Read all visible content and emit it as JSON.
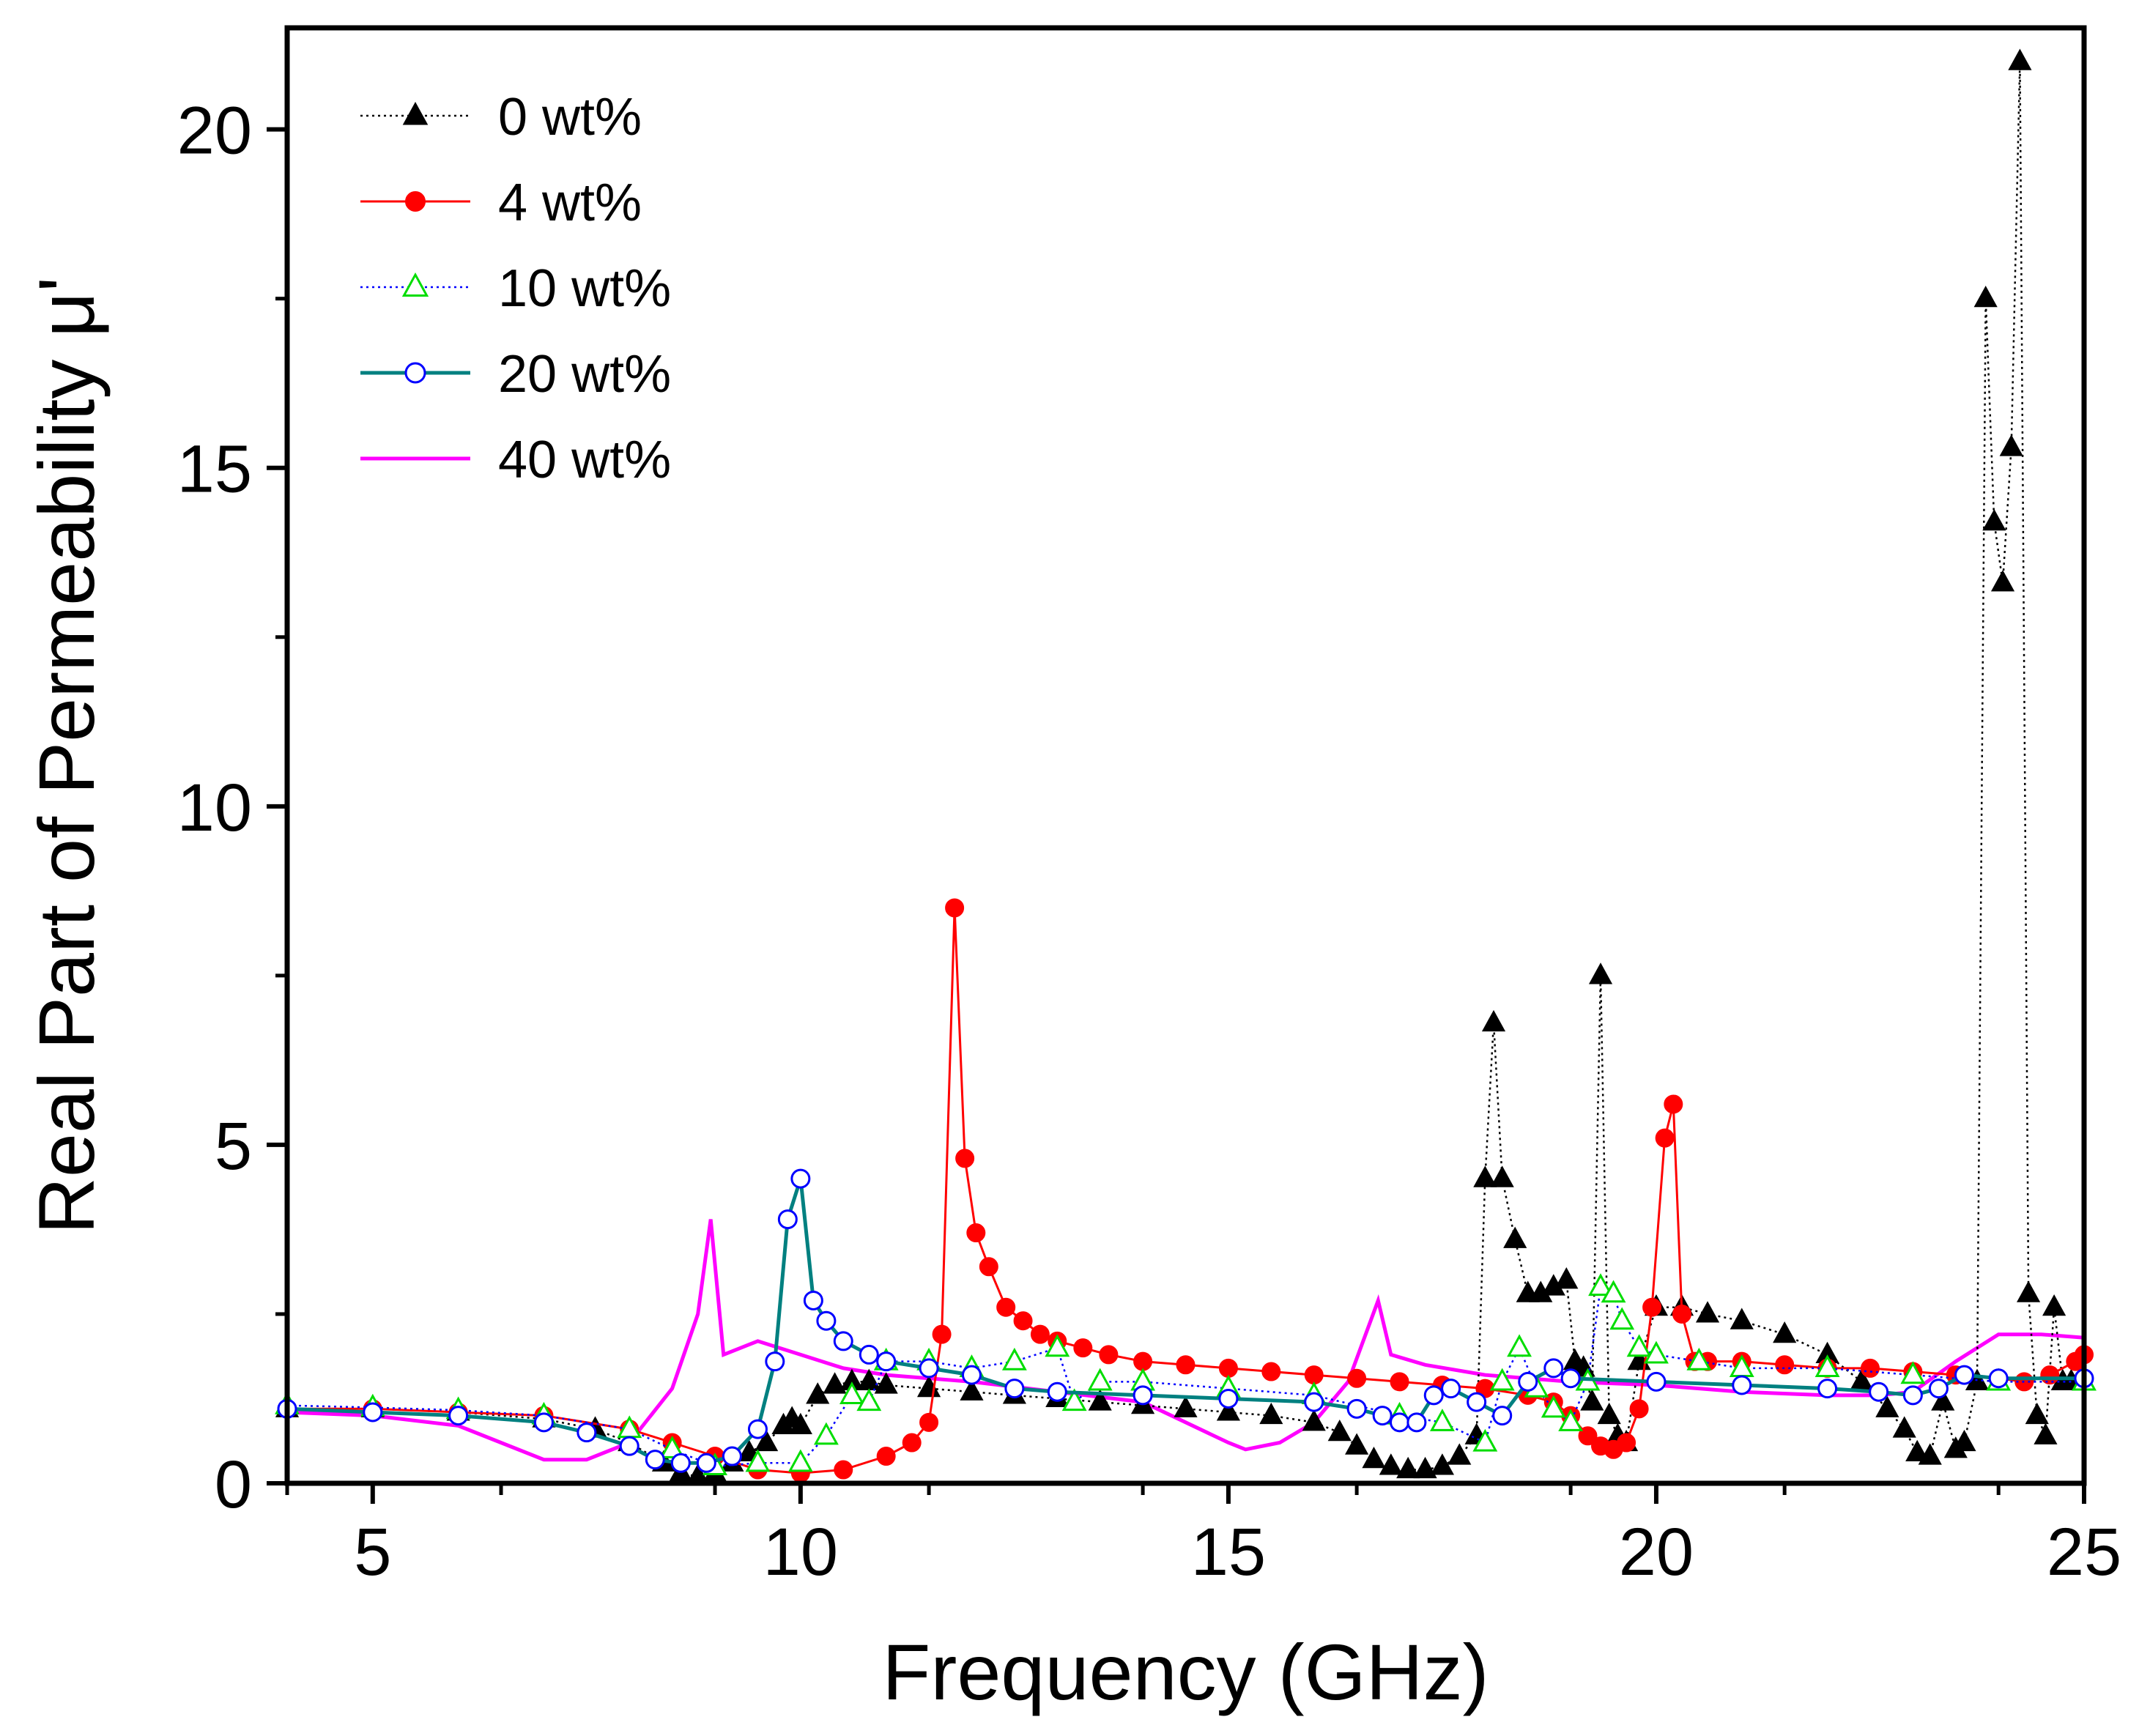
{
  "chart_data": {
    "type": "line",
    "title": "",
    "xlabel": "Frequency (GHz)",
    "ylabel": "Real Part of Permeability μ'",
    "xlim": [
      4,
      25
    ],
    "ylim": [
      0,
      21.5
    ],
    "xticks": [
      5,
      10,
      15,
      20,
      25
    ],
    "yticks": [
      0,
      5,
      10,
      15,
      20
    ],
    "grid": false,
    "legend_position": "top-left",
    "series": [
      {
        "name": "0 wt%",
        "color": "#000000",
        "marker": "triangle-filled",
        "line": "dotted",
        "x": [
          4.0,
          5.0,
          6.0,
          7.0,
          7.6,
          8.0,
          8.4,
          8.6,
          8.8,
          9.0,
          9.2,
          9.4,
          9.6,
          9.8,
          9.9,
          10.0,
          10.2,
          10.4,
          10.6,
          10.8,
          11.0,
          11.5,
          12.0,
          12.5,
          13.0,
          13.5,
          14.0,
          14.5,
          15.0,
          15.5,
          16.0,
          16.3,
          16.5,
          16.7,
          16.9,
          17.1,
          17.3,
          17.5,
          17.7,
          17.9,
          18.0,
          18.1,
          18.2,
          18.35,
          18.5,
          18.65,
          18.8,
          18.95,
          19.05,
          19.15,
          19.25,
          19.35,
          19.45,
          19.55,
          19.65,
          19.8,
          20.0,
          20.3,
          20.6,
          21.0,
          21.5,
          22.0,
          22.4,
          22.7,
          22.9,
          23.05,
          23.2,
          23.35,
          23.5,
          23.6,
          23.75,
          23.85,
          23.95,
          24.05,
          24.15,
          24.25,
          24.35,
          24.45,
          24.55,
          24.65,
          24.75,
          24.85,
          25.0
        ],
        "y": [
          1.1,
          1.1,
          1.05,
          0.95,
          0.8,
          0.6,
          0.3,
          0.15,
          0.1,
          0.15,
          0.3,
          0.45,
          0.6,
          0.85,
          0.95,
          0.85,
          1.3,
          1.45,
          1.5,
          1.5,
          1.45,
          1.4,
          1.35,
          1.3,
          1.25,
          1.2,
          1.15,
          1.1,
          1.05,
          1.0,
          0.9,
          0.75,
          0.55,
          0.35,
          0.25,
          0.2,
          0.2,
          0.25,
          0.4,
          0.7,
          4.5,
          6.8,
          4.5,
          3.6,
          2.8,
          2.8,
          2.9,
          3.0,
          1.8,
          1.7,
          1.2,
          7.5,
          1.0,
          0.7,
          0.6,
          1.8,
          2.6,
          2.6,
          2.5,
          2.4,
          2.2,
          1.9,
          1.5,
          1.1,
          0.8,
          0.45,
          0.4,
          1.2,
          0.5,
          0.6,
          1.5,
          17.5,
          14.2,
          13.3,
          15.3,
          21.0,
          2.8,
          1.0,
          0.7,
          2.6,
          1.5,
          1.5,
          1.5
        ]
      },
      {
        "name": "4 wt%",
        "color": "#ff0000",
        "marker": "circle-filled",
        "line": "solid",
        "x": [
          4.0,
          5.0,
          6.0,
          7.0,
          8.0,
          8.5,
          9.0,
          9.5,
          10.0,
          10.5,
          11.0,
          11.3,
          11.5,
          11.65,
          11.8,
          11.92,
          12.05,
          12.2,
          12.4,
          12.6,
          12.8,
          13.0,
          13.3,
          13.6,
          14.0,
          14.5,
          15.0,
          15.5,
          16.0,
          16.5,
          17.0,
          17.5,
          18.0,
          18.5,
          18.8,
          19.0,
          19.2,
          19.35,
          19.5,
          19.65,
          19.8,
          19.95,
          20.1,
          20.2,
          20.3,
          20.45,
          20.6,
          21.0,
          21.5,
          22.0,
          22.5,
          23.0,
          23.5,
          24.0,
          24.3,
          24.6,
          24.9,
          25.0
        ],
        "y": [
          1.1,
          1.1,
          1.05,
          1.0,
          0.8,
          0.6,
          0.4,
          0.2,
          0.15,
          0.2,
          0.4,
          0.6,
          0.9,
          2.2,
          8.5,
          4.8,
          3.7,
          3.2,
          2.6,
          2.4,
          2.2,
          2.1,
          2.0,
          1.9,
          1.8,
          1.75,
          1.7,
          1.65,
          1.6,
          1.55,
          1.5,
          1.45,
          1.4,
          1.3,
          1.2,
          1.0,
          0.7,
          0.55,
          0.5,
          0.6,
          1.1,
          2.6,
          5.1,
          5.6,
          2.5,
          1.8,
          1.8,
          1.8,
          1.75,
          1.7,
          1.7,
          1.65,
          1.6,
          1.55,
          1.5,
          1.6,
          1.8,
          1.9
        ]
      },
      {
        "name": "10 wt%",
        "color": "#0000ff",
        "marker": "triangle-open",
        "marker_color": "#00dd00",
        "line": "dotted",
        "x": [
          4.0,
          5.0,
          6.0,
          7.0,
          8.0,
          8.5,
          9.0,
          9.5,
          10.0,
          10.3,
          10.6,
          10.8,
          11.0,
          11.5,
          12.0,
          12.5,
          13.0,
          13.2,
          13.5,
          14.0,
          15.0,
          16.0,
          17.0,
          17.5,
          18.0,
          18.2,
          18.4,
          18.6,
          18.8,
          19.0,
          19.2,
          19.35,
          19.5,
          19.6,
          19.8,
          20.0,
          20.5,
          21.0,
          22.0,
          23.0,
          24.0,
          25.0
        ],
        "y": [
          1.15,
          1.12,
          1.08,
          1.0,
          0.8,
          0.5,
          0.25,
          0.3,
          0.3,
          0.7,
          1.3,
          1.2,
          1.8,
          1.8,
          1.7,
          1.8,
          2.0,
          1.2,
          1.5,
          1.5,
          1.4,
          1.3,
          1.0,
          0.9,
          0.6,
          1.5,
          2.0,
          1.4,
          1.1,
          0.9,
          1.5,
          2.9,
          2.8,
          2.4,
          2.0,
          1.9,
          1.8,
          1.7,
          1.7,
          1.6,
          1.5,
          1.5
        ]
      },
      {
        "name": "20 wt%",
        "color": "#008080",
        "marker": "circle-open",
        "marker_color": "#0000ff",
        "line": "solid",
        "x": [
          4.0,
          5.0,
          6.0,
          7.0,
          7.5,
          8.0,
          8.3,
          8.6,
          8.9,
          9.2,
          9.5,
          9.7,
          9.85,
          10.0,
          10.15,
          10.3,
          10.5,
          10.8,
          11.0,
          11.5,
          12.0,
          12.5,
          13.0,
          14.0,
          15.0,
          16.0,
          16.5,
          16.8,
          17.0,
          17.2,
          17.4,
          17.6,
          17.9,
          18.2,
          18.5,
          18.8,
          19.0,
          20.0,
          21.0,
          22.0,
          22.6,
          23.0,
          23.3,
          23.6,
          24.0,
          25.0
        ],
        "y": [
          1.1,
          1.05,
          1.0,
          0.9,
          0.75,
          0.55,
          0.35,
          0.3,
          0.3,
          0.4,
          0.8,
          1.8,
          3.9,
          4.5,
          2.7,
          2.4,
          2.1,
          1.9,
          1.8,
          1.7,
          1.6,
          1.4,
          1.35,
          1.3,
          1.25,
          1.2,
          1.1,
          1.0,
          0.9,
          0.9,
          1.3,
          1.4,
          1.2,
          1.0,
          1.5,
          1.7,
          1.55,
          1.5,
          1.45,
          1.4,
          1.35,
          1.3,
          1.4,
          1.6,
          1.55,
          1.55
        ]
      },
      {
        "name": "40 wt%",
        "color": "#ff00ff",
        "marker": "none",
        "line": "solid",
        "x": [
          4.0,
          5.0,
          6.0,
          7.0,
          7.5,
          8.0,
          8.5,
          8.8,
          8.95,
          9.1,
          9.5,
          10.0,
          10.5,
          11.0,
          12.0,
          13.0,
          14.0,
          15.0,
          15.2,
          15.6,
          16.0,
          16.4,
          16.75,
          16.9,
          17.3,
          18.0,
          19.0,
          20.0,
          21.0,
          22.0,
          22.6,
          23.0,
          23.5,
          24.0,
          24.5,
          25.0
        ],
        "y": [
          1.05,
          1.0,
          0.85,
          0.35,
          0.35,
          0.6,
          1.4,
          2.5,
          3.9,
          1.9,
          2.1,
          1.9,
          1.7,
          1.6,
          1.5,
          1.35,
          1.2,
          0.6,
          0.5,
          0.6,
          0.9,
          1.5,
          2.7,
          1.9,
          1.75,
          1.6,
          1.5,
          1.45,
          1.35,
          1.3,
          1.3,
          1.35,
          1.8,
          2.2,
          2.2,
          2.15
        ]
      }
    ]
  }
}
